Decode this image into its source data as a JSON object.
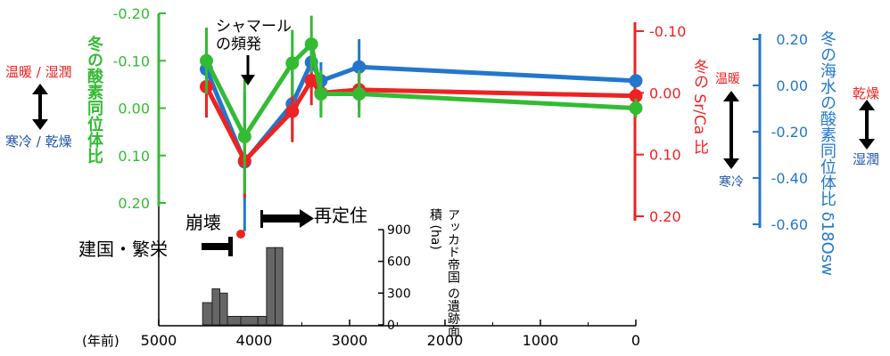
{
  "chart_data": {
    "type": "line",
    "x_axis": {
      "label": "(年前)",
      "ticks": [
        5000,
        4000,
        3000,
        2000,
        1000,
        0
      ],
      "tick_labels": [
        "5000",
        "4000",
        "3000",
        "2000",
        "1000",
        "0"
      ],
      "lim": [
        5000,
        0
      ]
    },
    "axes": {
      "green": {
        "label": "冬の酸素同位体比",
        "color": "#33bb33",
        "ticks": [
          "-0.20",
          "-0.10",
          "0.00",
          "0.10",
          "0.20"
        ],
        "lim": [
          -0.2,
          0.2
        ],
        "inverted": true
      },
      "red": {
        "label": "冬の Sr/Ca 比",
        "color": "#ee2222",
        "ticks": [
          "-0.10",
          "0.00",
          "0.10",
          "0.20"
        ],
        "lim": [
          -0.1,
          0.2
        ],
        "inverted": true
      },
      "blue": {
        "label": "冬の海水の酸素同位体比 δ18Osw",
        "color": "#2277cc",
        "ticks": [
          "0.20",
          "0.00",
          "-0.20",
          "-0.40",
          "-0.60"
        ],
        "lim": [
          0.2,
          -0.6
        ]
      },
      "bar_axis": {
        "label": "アッカド帝国 の遺跡面積 (ha)",
        "ticks": [
          "900",
          "600",
          "300",
          "0"
        ],
        "lim": [
          0,
          900
        ]
      }
    },
    "series": [
      {
        "axis": "green",
        "color": "#33bb33",
        "points": [
          {
            "x": 4500,
            "y": -0.1,
            "err": 0.07
          },
          {
            "x": 4100,
            "y": 0.06,
            "err": 0.12
          },
          {
            "x": 3600,
            "y": -0.095,
            "err": 0.07
          },
          {
            "x": 3400,
            "y": -0.135,
            "err": 0.06
          },
          {
            "x": 3300,
            "y": -0.03,
            "err": 0.05
          },
          {
            "x": 2900,
            "y": -0.03,
            "err": 0.05
          },
          {
            "x": 0,
            "y": 0.0,
            "err": 0.02
          }
        ]
      },
      {
        "axis": "red",
        "color": "#ee2222",
        "points": [
          {
            "x": 4500,
            "y": -0.01,
            "err": 0.05
          },
          {
            "x": 4100,
            "y": 0.11,
            "err": 0.06
          },
          {
            "x": 3600,
            "y": 0.03,
            "err": 0.05
          },
          {
            "x": 3400,
            "y": -0.02,
            "err": 0.04
          },
          {
            "x": 3300,
            "y": 0.0,
            "err": 0.03
          },
          {
            "x": 2900,
            "y": -0.005,
            "err": 0.03
          },
          {
            "x": 0,
            "y": 0.005,
            "err": 0.01
          }
        ]
      },
      {
        "axis": "blue",
        "color": "#2277cc",
        "points": [
          {
            "x": 4500,
            "y": 0.07,
            "err": 0.12
          },
          {
            "x": 4100,
            "y": -0.33,
            "err": 0.3
          },
          {
            "x": 3600,
            "y": -0.08,
            "err": 0.15
          },
          {
            "x": 3400,
            "y": 0.1,
            "err": 0.1
          },
          {
            "x": 3300,
            "y": 0.02,
            "err": 0.08
          },
          {
            "x": 2900,
            "y": 0.08,
            "err": 0.12
          },
          {
            "x": 0,
            "y": 0.02,
            "err": 0.02
          }
        ]
      }
    ],
    "bars": {
      "color": "#666666",
      "items": [
        {
          "x0": 4540,
          "x1": 4440,
          "value": 210
        },
        {
          "x0": 4440,
          "x1": 4360,
          "value": 340
        },
        {
          "x0": 4360,
          "x1": 4280,
          "value": 300
        },
        {
          "x0": 4280,
          "x1": 4140,
          "value": 80
        },
        {
          "x0": 4140,
          "x1": 3960,
          "value": 80
        },
        {
          "x0": 3960,
          "x1": 3870,
          "value": 80
        },
        {
          "x0": 3870,
          "x1": 3780,
          "value": 730
        },
        {
          "x0": 3780,
          "x1": 3700,
          "value": 730
        }
      ]
    }
  },
  "annotations": {
    "chamal": "シャマール\nの頻発",
    "collapse": "崩壊",
    "resettle": "再定住",
    "founding": "建国・繁栄",
    "left_top": "温暖 / 湿潤",
    "left_bottom": "寒冷 / 乾燥",
    "mid_top": "温暖",
    "mid_bottom": "寒冷",
    "right_top": "乾燥",
    "right_bottom": "湿潤"
  }
}
